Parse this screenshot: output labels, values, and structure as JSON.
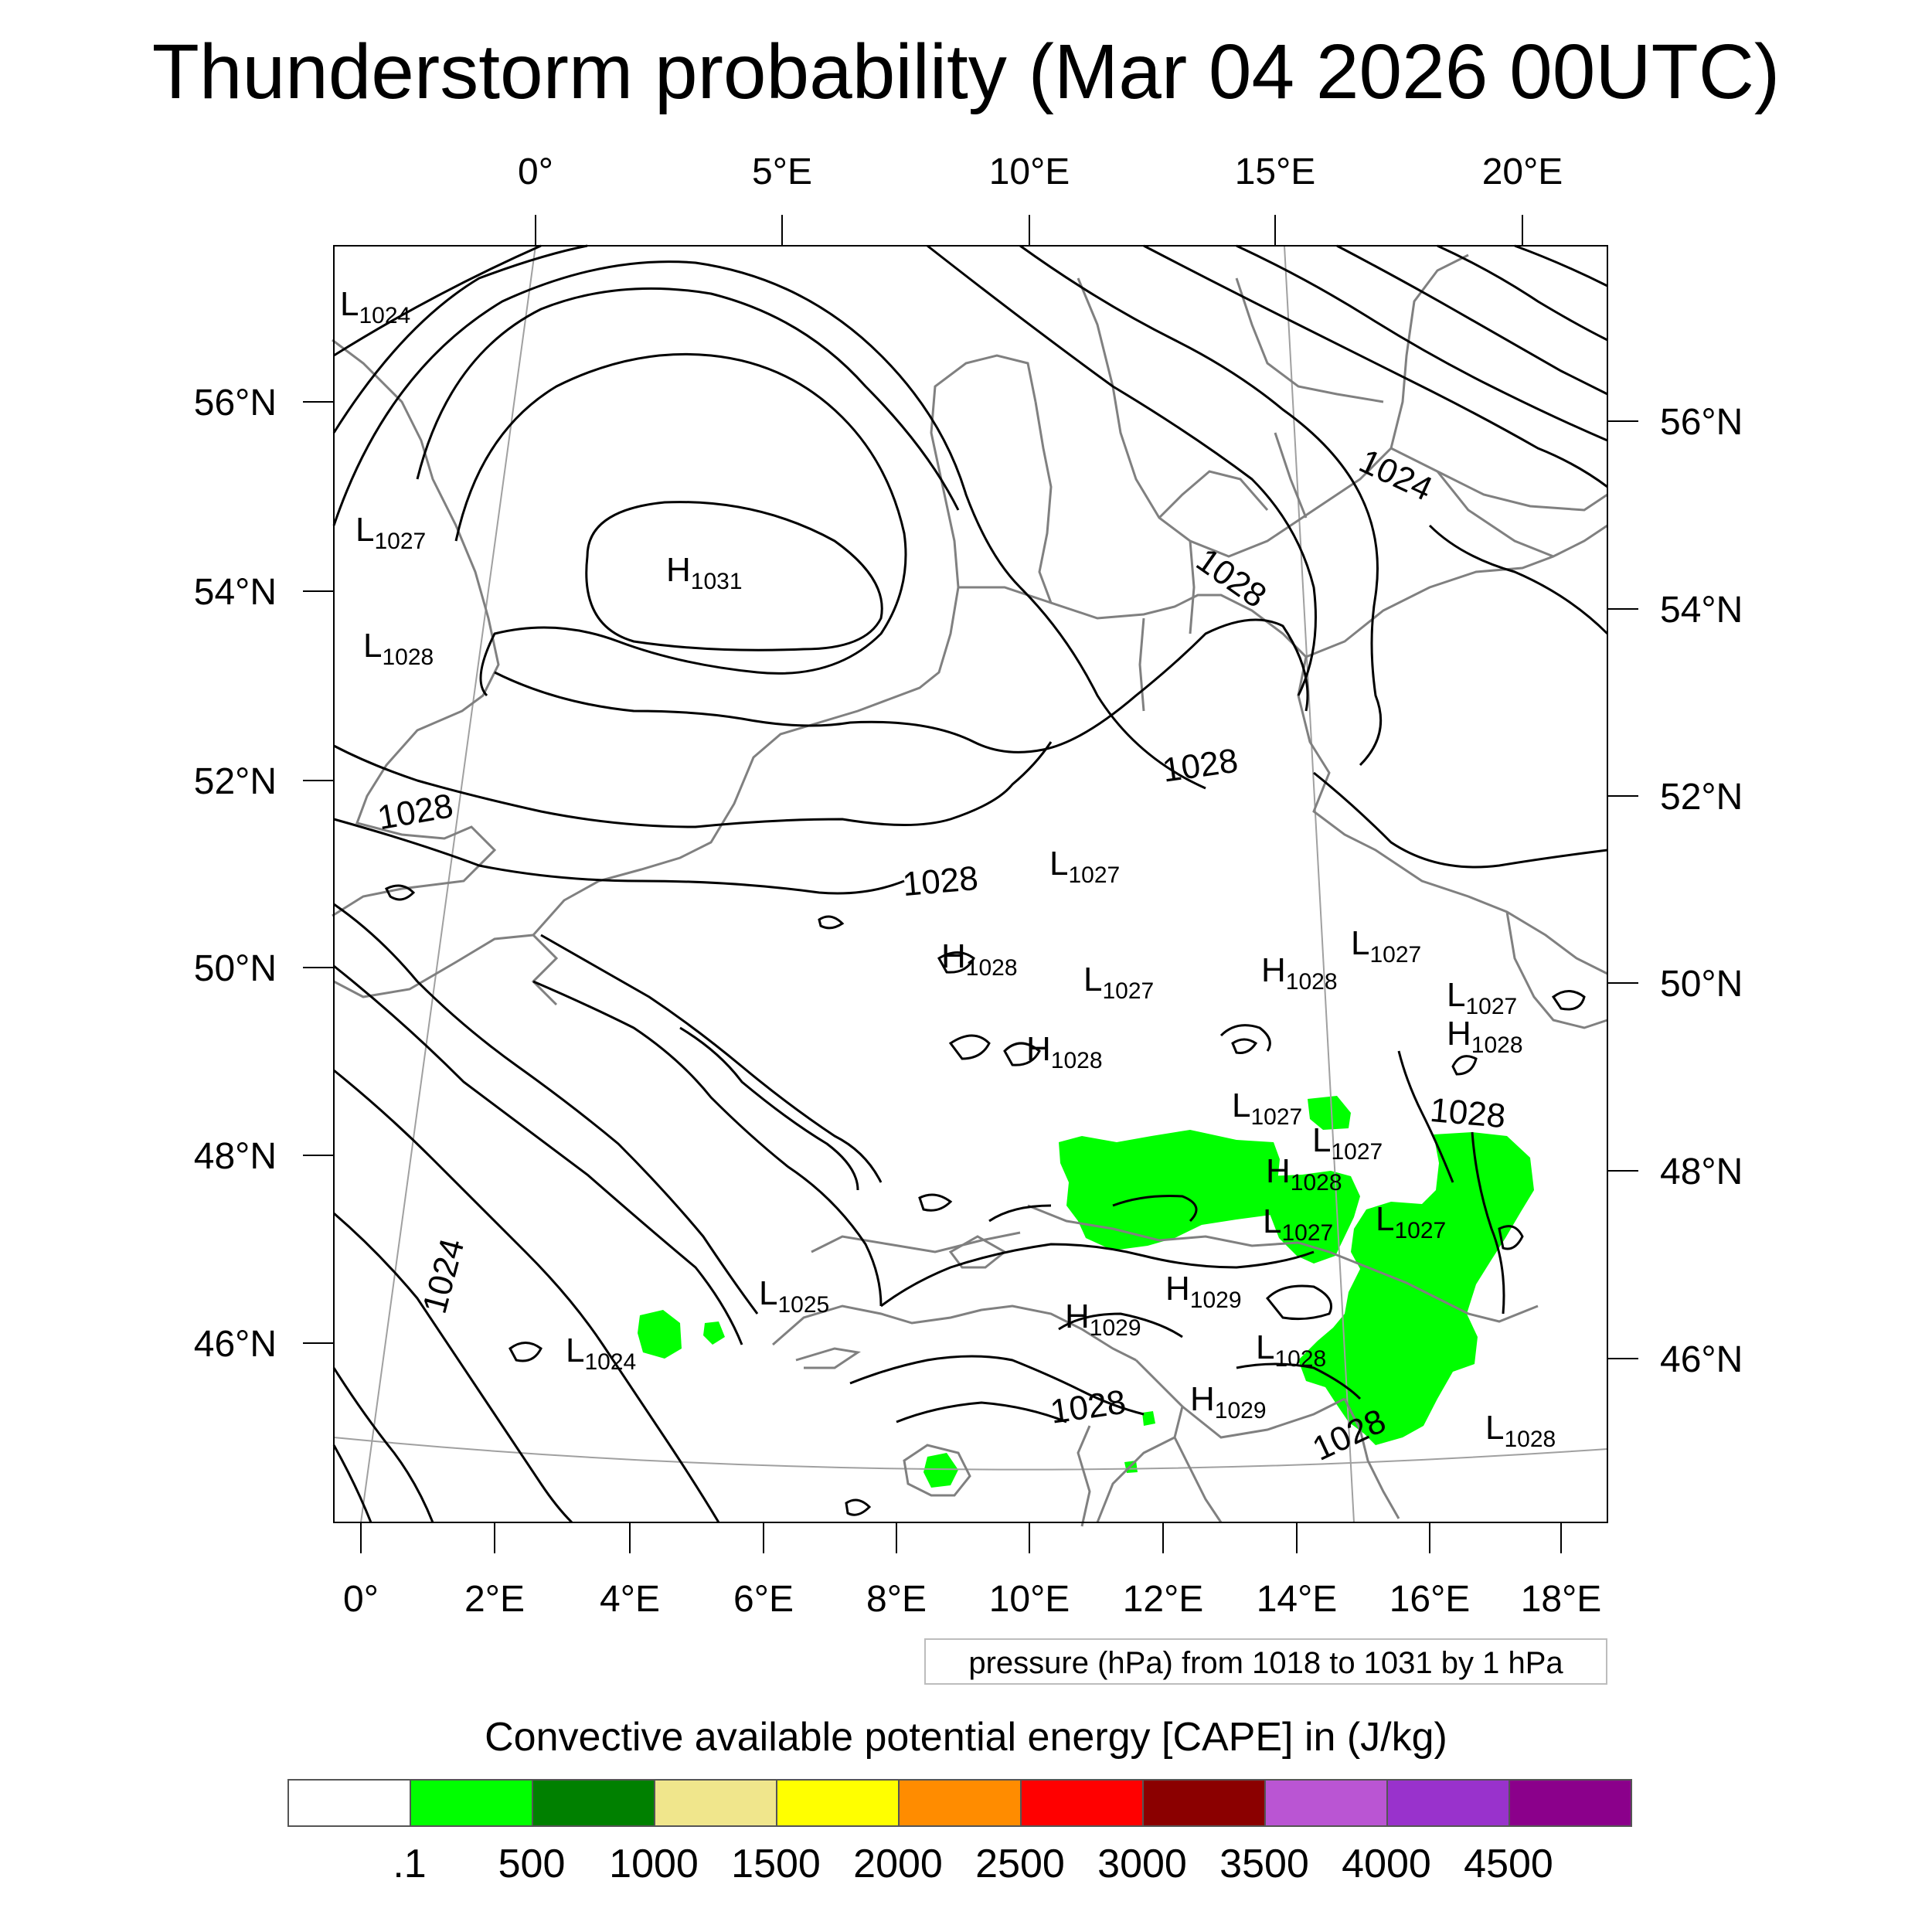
{
  "title": "Thunderstorm probability (Mar 04 2026 00UTC)",
  "axes": {
    "top_lon_labels": [
      "0°",
      "5°E",
      "10°E",
      "15°E",
      "20°E"
    ],
    "bottom_lon_labels": [
      "0°",
      "2°E",
      "4°E",
      "6°E",
      "8°E",
      "10°E",
      "12°E",
      "14°E",
      "16°E",
      "18°E"
    ],
    "left_lat_labels": [
      "56°N",
      "54°N",
      "52°N",
      "50°N",
      "48°N",
      "46°N"
    ],
    "right_lat_labels": [
      "56°N",
      "54°N",
      "52°N",
      "50°N",
      "48°N",
      "46°N"
    ]
  },
  "isobar_labels": [
    "1024",
    "1028",
    "1028",
    "1028",
    "1028",
    "1024",
    "1028",
    "1028",
    "1028"
  ],
  "pressure_centers": [
    {
      "type": "L",
      "value": "1024"
    },
    {
      "type": "L",
      "value": "1027"
    },
    {
      "type": "H",
      "value": "1031"
    },
    {
      "type": "L",
      "value": "1028"
    },
    {
      "type": "L",
      "value": "1027"
    },
    {
      "type": "H",
      "value": "1028"
    },
    {
      "type": "L",
      "value": "1027"
    },
    {
      "type": "H",
      "value": "1028"
    },
    {
      "type": "H",
      "value": "1028"
    },
    {
      "type": "L",
      "value": "1027"
    },
    {
      "type": "L",
      "value": "1027"
    },
    {
      "type": "H",
      "value": "1028"
    },
    {
      "type": "L",
      "value": "1027"
    },
    {
      "type": "L",
      "value": "1027"
    },
    {
      "type": "H",
      "value": "1028"
    },
    {
      "type": "L",
      "value": "1027"
    },
    {
      "type": "L",
      "value": "1027"
    },
    {
      "type": "L",
      "value": "1025"
    },
    {
      "type": "H",
      "value": "1029"
    },
    {
      "type": "H",
      "value": "1029"
    },
    {
      "type": "L",
      "value": "1024"
    },
    {
      "type": "L",
      "value": "1028"
    },
    {
      "type": "H",
      "value": "1029"
    },
    {
      "type": "L",
      "value": "1028"
    }
  ],
  "pressure_note": "pressure (hPa) from 1018 to 1031 by 1 hPa",
  "colorbar": {
    "title": "Convective available potential energy [CAPE] in (J/kg)",
    "colors": [
      "#ffffff",
      "#00ff00",
      "#008000",
      "#f0e68c",
      "#ffff00",
      "#ff8c00",
      "#ff0000",
      "#8b0000",
      "#ba55d3",
      "#9932cc",
      "#8b008b"
    ],
    "labels": [
      ".1",
      "500",
      "1000",
      "1500",
      "2000",
      "2500",
      "3000",
      "3500",
      "4000",
      "4500"
    ]
  },
  "colors": {
    "cape_fill": "#00ff00",
    "isobar": "#000000",
    "coastline": "#808080",
    "graticule": "#a0a0a0"
  }
}
